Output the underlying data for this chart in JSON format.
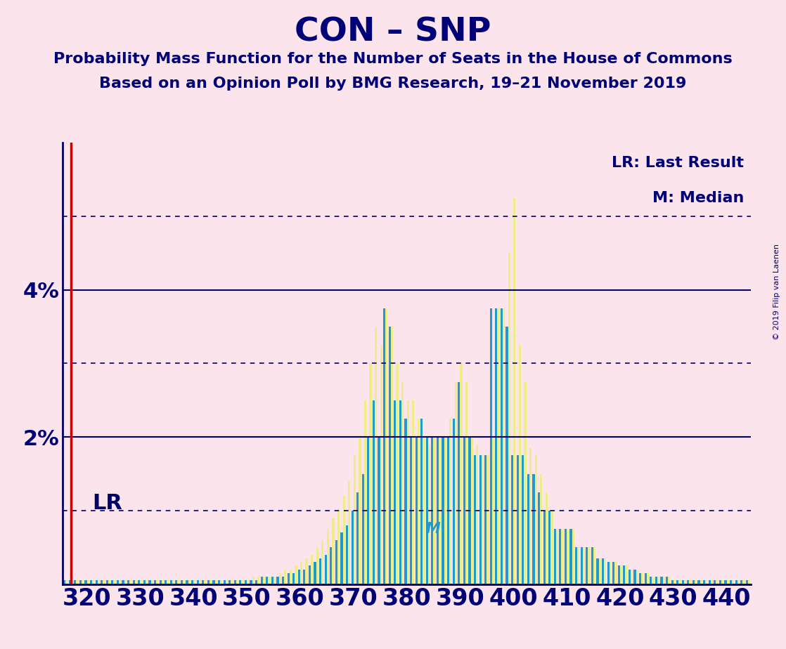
{
  "title": "CON – SNP",
  "subtitle1": "Probability Mass Function for the Number of Seats in the House of Commons",
  "subtitle2": "Based on an Opinion Poll by BMG Research, 19–21 November 2019",
  "legend1": "LR: Last Result",
  "legend2": "M: Median",
  "lr_label": "LR",
  "m_label": "M",
  "copyright": "© 2019 Filip van Laenen",
  "lr_x": 317,
  "median_x": 385,
  "background_color": "#fce4ec",
  "bar_color_cyan": "#2299cc",
  "bar_color_yellow": "#eeee88",
  "lr_color": "#cc0000",
  "solid_line_color": "#000066",
  "dotted_line_color": "#000066",
  "title_color": "#000077",
  "ylim": [
    0,
    6.0
  ],
  "xlim_left": 315.5,
  "xlim_right": 444.5,
  "seats": [
    316,
    317,
    318,
    319,
    320,
    321,
    322,
    323,
    324,
    325,
    326,
    327,
    328,
    329,
    330,
    331,
    332,
    333,
    334,
    335,
    336,
    337,
    338,
    339,
    340,
    341,
    342,
    343,
    344,
    345,
    346,
    347,
    348,
    349,
    350,
    351,
    352,
    353,
    354,
    355,
    356,
    357,
    358,
    359,
    360,
    361,
    362,
    363,
    364,
    365,
    366,
    367,
    368,
    369,
    370,
    371,
    372,
    373,
    374,
    375,
    376,
    377,
    378,
    379,
    380,
    381,
    382,
    383,
    384,
    385,
    386,
    387,
    388,
    389,
    390,
    391,
    392,
    393,
    394,
    395,
    396,
    397,
    398,
    399,
    400,
    401,
    402,
    403,
    404,
    405,
    406,
    407,
    408,
    409,
    410,
    411,
    412,
    413,
    414,
    415,
    416,
    417,
    418,
    419,
    420,
    421,
    422,
    423,
    424,
    425,
    426,
    427,
    428,
    429,
    430,
    431,
    432,
    433,
    434,
    435,
    436,
    437,
    438,
    439,
    440,
    441,
    442,
    443,
    444
  ],
  "pmf_cyan": [
    0.05,
    0.05,
    0.05,
    0.05,
    0.05,
    0.05,
    0.05,
    0.05,
    0.05,
    0.05,
    0.05,
    0.05,
    0.05,
    0.05,
    0.05,
    0.05,
    0.05,
    0.05,
    0.05,
    0.05,
    0.05,
    0.05,
    0.05,
    0.05,
    0.05,
    0.05,
    0.05,
    0.05,
    0.05,
    0.05,
    0.05,
    0.05,
    0.05,
    0.05,
    0.05,
    0.05,
    0.05,
    0.1,
    0.1,
    0.1,
    0.1,
    0.1,
    0.15,
    0.15,
    0.2,
    0.2,
    0.25,
    0.3,
    0.35,
    0.4,
    0.5,
    0.6,
    0.7,
    0.8,
    1.0,
    1.25,
    1.5,
    2.0,
    2.5,
    2.0,
    3.75,
    3.5,
    2.5,
    2.5,
    2.25,
    2.0,
    2.0,
    2.25,
    2.0,
    2.0,
    2.0,
    2.0,
    2.0,
    2.25,
    2.75,
    2.0,
    2.0,
    1.75,
    1.75,
    1.75,
    3.75,
    3.75,
    3.75,
    3.5,
    1.75,
    1.75,
    1.75,
    1.5,
    1.5,
    1.25,
    1.0,
    1.0,
    0.75,
    0.75,
    0.75,
    0.75,
    0.5,
    0.5,
    0.5,
    0.5,
    0.35,
    0.35,
    0.3,
    0.3,
    0.25,
    0.25,
    0.2,
    0.2,
    0.15,
    0.15,
    0.1,
    0.1,
    0.1,
    0.1,
    0.05,
    0.05,
    0.05,
    0.05,
    0.05,
    0.05,
    0.05,
    0.05,
    0.05,
    0.05,
    0.05,
    0.05,
    0.05,
    0.05,
    0.05
  ],
  "pmf_yellow": [
    0.05,
    0.05,
    0.05,
    0.05,
    0.05,
    0.05,
    0.05,
    0.05,
    0.05,
    0.05,
    0.05,
    0.05,
    0.05,
    0.05,
    0.05,
    0.05,
    0.05,
    0.05,
    0.05,
    0.05,
    0.05,
    0.05,
    0.05,
    0.05,
    0.05,
    0.05,
    0.05,
    0.05,
    0.05,
    0.05,
    0.05,
    0.05,
    0.05,
    0.05,
    0.05,
    0.1,
    0.1,
    0.1,
    0.1,
    0.1,
    0.15,
    0.2,
    0.2,
    0.25,
    0.3,
    0.35,
    0.4,
    0.5,
    0.6,
    0.75,
    0.9,
    1.0,
    1.2,
    1.4,
    1.75,
    2.0,
    2.5,
    3.0,
    3.5,
    3.25,
    3.75,
    3.5,
    3.0,
    2.75,
    2.5,
    2.5,
    2.25,
    2.0,
    1.9,
    2.0,
    2.0,
    2.0,
    2.25,
    2.75,
    3.0,
    2.75,
    2.0,
    1.9,
    1.75,
    1.75,
    2.0,
    3.75,
    3.75,
    4.5,
    5.25,
    3.25,
    2.75,
    1.85,
    1.75,
    1.5,
    1.25,
    1.0,
    0.75,
    0.75,
    0.75,
    0.75,
    0.5,
    0.5,
    0.5,
    0.5,
    0.35,
    0.35,
    0.3,
    0.3,
    0.25,
    0.25,
    0.2,
    0.2,
    0.15,
    0.15,
    0.1,
    0.1,
    0.1,
    0.1,
    0.05,
    0.05,
    0.05,
    0.05,
    0.05,
    0.05,
    0.05,
    0.05,
    0.05,
    0.05,
    0.05,
    0.05,
    0.05,
    0.05,
    0.05
  ]
}
